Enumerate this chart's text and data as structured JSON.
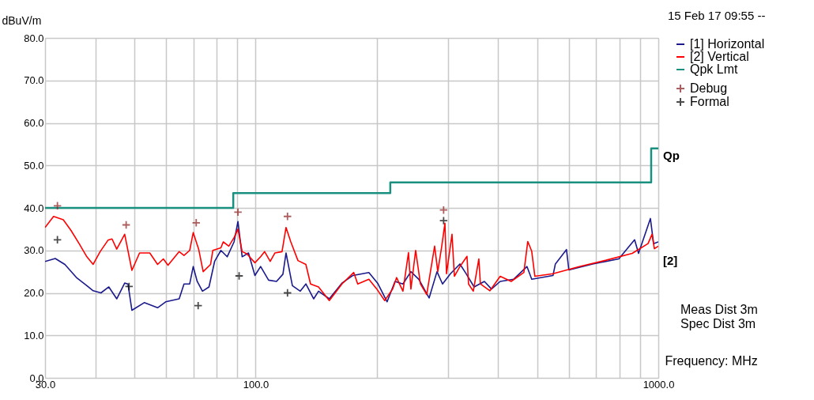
{
  "chart_data": {
    "type": "line",
    "subtitle": "15 Feb 17 09:55 --",
    "xlabel": "Frequency: MHz",
    "ylabel": "dBuV/m",
    "log": "x",
    "grid": true,
    "legend": "top right",
    "xlim": [
      30,
      1000
    ],
    "ylim": [
      0,
      80
    ],
    "xticks": [
      {
        "value": 30,
        "label": "30.0"
      },
      {
        "value": 40,
        "label": null
      },
      {
        "value": 50,
        "label": null
      },
      {
        "value": 60,
        "label": null
      },
      {
        "value": 70,
        "label": null
      },
      {
        "value": 80,
        "label": null
      },
      {
        "value": 90,
        "label": null
      },
      {
        "value": 100,
        "label": "100.0"
      },
      {
        "value": 200,
        "label": null
      },
      {
        "value": 300,
        "label": null
      },
      {
        "value": 400,
        "label": null
      },
      {
        "value": 500,
        "label": null
      },
      {
        "value": 600,
        "label": null
      },
      {
        "value": 700,
        "label": null
      },
      {
        "value": 800,
        "label": null
      },
      {
        "value": 900,
        "label": null
      },
      {
        "value": 1000,
        "label": "1000.0"
      }
    ],
    "yticks": [
      {
        "value": 0,
        "label": "0.0"
      },
      {
        "value": 10,
        "label": "10.0"
      },
      {
        "value": 20,
        "label": "20.0"
      },
      {
        "value": 30,
        "label": "30.0"
      },
      {
        "value": 40,
        "label": "40.0"
      },
      {
        "value": 50,
        "label": "50.0"
      },
      {
        "value": 60,
        "label": "60.0"
      },
      {
        "value": 70,
        "label": "70.0"
      },
      {
        "value": 80,
        "label": "80.0"
      }
    ],
    "annotations": [
      {
        "text": "Qp",
        "x": 1000,
        "y": 54
      },
      "[2]",
      "Meas Dist 3m",
      "Spec Dist 3m"
    ],
    "series": [
      {
        "name": "[1] Horizontal",
        "color": "#1a1a8c",
        "x": [
          30.0,
          31.8,
          33.6,
          36.0,
          38.1,
          39.5,
          41.3,
          43.2,
          45.2,
          47.3,
          48.2,
          49.3,
          52.9,
          57.1,
          59.8,
          64.6,
          66.4,
          68.6,
          70.0,
          71.6,
          73.8,
          76.6,
          79.1,
          82.0,
          85.0,
          88.4,
          90.4,
          92.6,
          96.0,
          99.6,
          102.9,
          107.7,
          112.7,
          116.9,
          119.0,
          123.4,
          129.1,
          133.3,
          139.4,
          143.3,
          152.4,
          163.8,
          174.5,
          191.1,
          200.9,
          212.1,
          221.9,
          232.2,
          243.0,
          254.3,
          269.7,
          282.1,
          291.2,
          304.7,
          321.6,
          333.4,
          348.8,
          369.9,
          385.2,
          404.9,
          437.0,
          472.0,
          484.9,
          547.6,
          555.1,
          591.5,
          599.6,
          686.9,
          797.7,
          873.2,
          893.1,
          955.8,
          973.4,
          1000
        ],
        "values": [
          27.4,
          28.1,
          26.7,
          23.5,
          21.7,
          20.5,
          20.0,
          21.4,
          18.6,
          22.3,
          22.1,
          15.9,
          17.7,
          16.5,
          17.9,
          18.6,
          22.1,
          22.1,
          26.2,
          22.7,
          20.4,
          21.4,
          27.4,
          30.0,
          28.5,
          32.0,
          36.8,
          28.5,
          29.4,
          24.1,
          26.2,
          23.0,
          22.7,
          24.4,
          29.4,
          21.7,
          20.4,
          22.1,
          18.6,
          20.4,
          18.6,
          22.3,
          24.1,
          24.8,
          22.3,
          17.9,
          22.7,
          22.1,
          25.0,
          23.2,
          18.8,
          25.0,
          22.1,
          24.5,
          26.8,
          24.5,
          21.4,
          22.7,
          20.9,
          22.7,
          23.2,
          26.2,
          23.2,
          24.1,
          26.8,
          30.2,
          25.4,
          26.8,
          28.0,
          32.5,
          29.3,
          37.5,
          31.6,
          32.0
        ]
      },
      {
        "name": "[2] Vertical",
        "color": "#ff0000",
        "x": [
          30.0,
          31.5,
          33.3,
          34.8,
          36.5,
          38.1,
          39.5,
          41.1,
          43.0,
          44.0,
          45.2,
          47.3,
          49.3,
          51.5,
          54.6,
          57.1,
          59.0,
          60.6,
          64.6,
          66.4,
          68.6,
          70.0,
          72.2,
          74.1,
          77.3,
          78.3,
          82.0,
          83.1,
          85.8,
          88.4,
          90.4,
          92.6,
          95.1,
          99.6,
          102.9,
          105.3,
          108.7,
          111.7,
          116.3,
          119.0,
          122.3,
          127.4,
          133.3,
          136.9,
          143.3,
          152.4,
          163.8,
          175.3,
          179.3,
          191.1,
          200.0,
          209.2,
          218.9,
          223.9,
          232.2,
          239.7,
          243.0,
          249.7,
          256.6,
          266.0,
          278.3,
          283.4,
          289.9,
          295.2,
          297.9,
          307.4,
          311.6,
          321.6,
          334.9,
          337.9,
          347.2,
          358.4,
          361.6,
          381.8,
          404.9,
          431.1,
          463.6,
          474.1,
          484.9,
          493.7,
          547.6,
          636.3,
          742.3,
          861.4,
          943.0,
          964.6,
          977.9,
          1000
        ],
        "values": [
          35.4,
          38.0,
          37.2,
          34.7,
          31.5,
          28.5,
          26.7,
          29.7,
          32.4,
          32.7,
          30.3,
          33.8,
          25.3,
          29.4,
          29.4,
          26.7,
          28.0,
          26.5,
          29.7,
          28.8,
          30.0,
          34.2,
          30.3,
          25.0,
          26.7,
          30.0,
          30.6,
          32.0,
          31.0,
          33.0,
          35.0,
          29.7,
          29.2,
          27.1,
          28.5,
          29.7,
          27.4,
          29.4,
          29.7,
          35.4,
          32.0,
          27.6,
          26.7,
          22.1,
          21.4,
          18.2,
          22.1,
          24.8,
          22.1,
          23.2,
          20.9,
          18.2,
          20.9,
          23.6,
          20.4,
          29.5,
          20.9,
          30.0,
          22.1,
          19.6,
          31.0,
          25.0,
          31.0,
          36.4,
          24.5,
          33.8,
          23.9,
          26.2,
          28.6,
          22.1,
          20.4,
          28.0,
          22.1,
          20.5,
          23.9,
          22.7,
          24.8,
          32.1,
          29.8,
          23.9,
          24.5,
          26.2,
          27.7,
          29.3,
          31.6,
          33.8,
          30.4,
          31.0
        ]
      },
      {
        "name": "Qpk Lmt",
        "type": "step",
        "color": "#1a9080",
        "x": [
          30,
          88,
          216,
          960,
          1000
        ],
        "values": [
          40,
          43.5,
          46,
          54,
          54
        ]
      },
      {
        "name": "Debug",
        "type": "scatter",
        "marker": "cross",
        "color": "#8b1a1a",
        "x": [
          32.2,
          47.7,
          71.2,
          90.4,
          120,
          293
        ],
        "values": [
          40.5,
          36,
          36.5,
          39,
          38,
          39.5
        ]
      },
      {
        "name": "Formal",
        "type": "scatter",
        "marker": "cross",
        "color": "#000000",
        "x": [
          32.2,
          48.5,
          72,
          91,
          120,
          293
        ],
        "values": [
          32.5,
          21.5,
          17,
          24,
          20,
          37
        ]
      }
    ]
  }
}
